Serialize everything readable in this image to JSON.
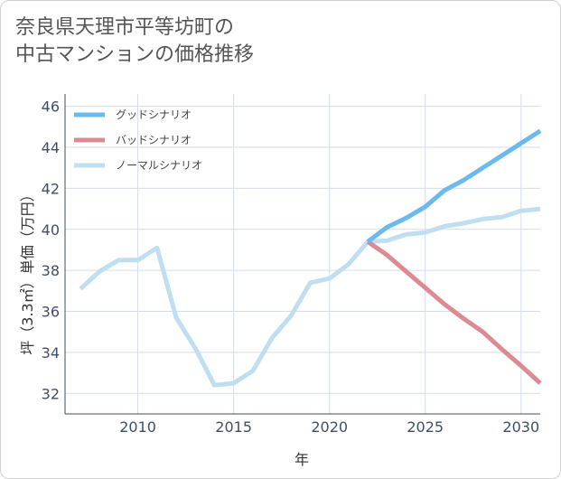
{
  "chart_data": {
    "type": "line",
    "title": "奈良県天理市平等坊町の\n中古マンションの価格推移",
    "xlabel": "年",
    "ylabel": "坪（3.3㎡）単価（万円）",
    "xlim": [
      2006.2,
      2031
    ],
    "ylim": [
      31,
      46.6
    ],
    "xticks": [
      2010,
      2015,
      2020,
      2025,
      2030
    ],
    "yticks": [
      32,
      34,
      36,
      38,
      40,
      42,
      44,
      46
    ],
    "legend_position": "top-left",
    "colors": {
      "good": "#6bb9ee",
      "bad": "#dd8b92",
      "normal": "#bfdff0",
      "grid": "#d5dde8",
      "axis": "#3f4f66"
    },
    "series": [
      {
        "key": "good",
        "name": "グッドシナリオ",
        "x": [
          2022,
          2023,
          2024,
          2025,
          2026,
          2027,
          2028,
          2029,
          2030,
          2031
        ],
        "y": [
          39.4,
          40.1,
          40.55,
          41.1,
          41.9,
          42.4,
          43.0,
          43.6,
          44.2,
          44.8
        ]
      },
      {
        "key": "bad",
        "name": "バッドシナリオ",
        "x": [
          2022,
          2023,
          2024,
          2025,
          2026,
          2027,
          2028,
          2029,
          2030,
          2031
        ],
        "y": [
          39.4,
          38.75,
          37.95,
          37.15,
          36.35,
          35.65,
          35.0,
          34.15,
          33.35,
          32.5
        ]
      },
      {
        "key": "normal",
        "name": "ノーマルシナリオ",
        "x": [
          2007,
          2008,
          2009,
          2010,
          2011,
          2012,
          2013,
          2014,
          2015,
          2016,
          2017,
          2018,
          2019,
          2020,
          2021,
          2022,
          2023,
          2024,
          2025,
          2026,
          2027,
          2028,
          2029,
          2030,
          2031
        ],
        "y": [
          37.1,
          37.95,
          38.5,
          38.5,
          39.1,
          35.7,
          34.2,
          32.4,
          32.5,
          33.1,
          34.7,
          35.8,
          37.4,
          37.6,
          38.3,
          39.4,
          39.45,
          39.75,
          39.85,
          40.15,
          40.3,
          40.5,
          40.6,
          40.9,
          41.0
        ]
      }
    ]
  }
}
